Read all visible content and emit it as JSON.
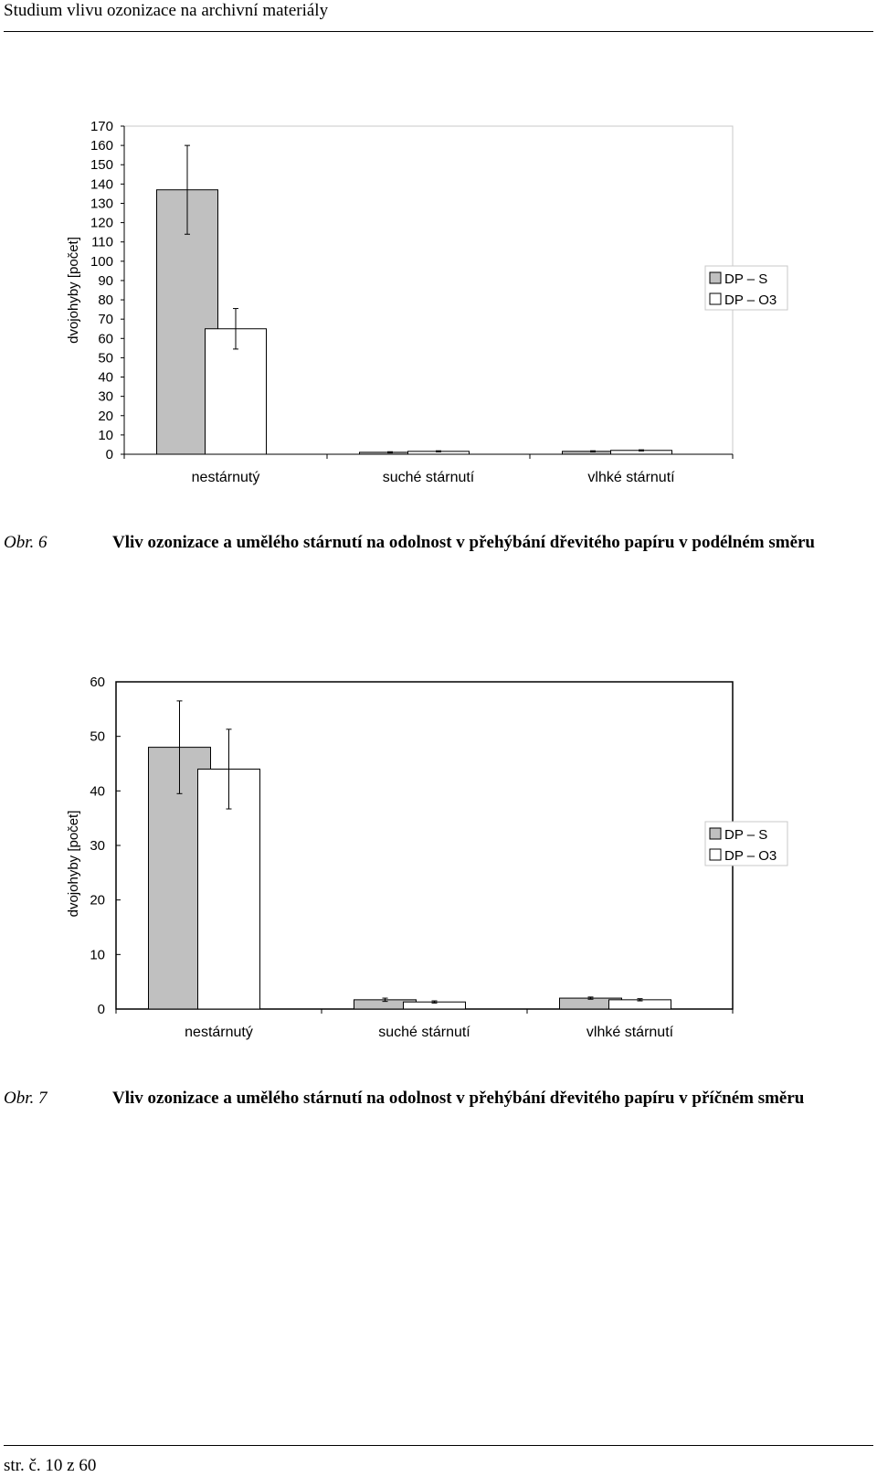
{
  "header": {
    "running_title": "Studium vlivu ozonizace na archivní materiály"
  },
  "footer": {
    "page": "str. č. 10 z 60"
  },
  "figures": [
    {
      "label": "Obr. 6",
      "caption": "Vliv ozonizace a umělého stárnutí na odolnost v přehýbání dřevitého papíru v podélném směru",
      "chart_data": {
        "type": "bar",
        "ylabel": "dvojohyby [počet]",
        "xlabel": "",
        "ylim": [
          0,
          170
        ],
        "yticks": [
          0,
          10,
          20,
          30,
          40,
          50,
          60,
          70,
          80,
          90,
          100,
          110,
          120,
          130,
          140,
          150,
          160,
          170
        ],
        "categories": [
          "nestárnutý",
          "suché stárnutí",
          "vlhké stárnutí"
        ],
        "series": [
          {
            "name": "DP – S",
            "color": "#c0c0c0",
            "values": [
              137,
              1,
              1.5
            ],
            "error": [
              23,
              0.3,
              0.3
            ]
          },
          {
            "name": "DP – O3",
            "color": "#ffffff",
            "values": [
              65,
              1.5,
              2
            ],
            "error": [
              10.5,
              0.3,
              0.3
            ]
          }
        ],
        "grid": false,
        "legend": "right"
      }
    },
    {
      "label": "Obr. 7",
      "caption": "Vliv ozonizace a umělého stárnutí na odolnost v přehýbání dřevitého papíru v příčném směru",
      "chart_data": {
        "type": "bar",
        "ylabel": "dvojohyby [počet]",
        "xlabel": "",
        "ylim": [
          0,
          60
        ],
        "yticks": [
          0,
          10,
          20,
          30,
          40,
          50,
          60
        ],
        "categories": [
          "nestárnutý",
          "suché stárnutí",
          "vlhké stárnutí"
        ],
        "series": [
          {
            "name": "DP – S",
            "color": "#c0c0c0",
            "values": [
              48,
              1.7,
              2
            ],
            "error": [
              8.5,
              0.3,
              0.2
            ]
          },
          {
            "name": "DP – O3",
            "color": "#ffffff",
            "values": [
              44,
              1.3,
              1.7
            ],
            "error": [
              7.3,
              0.2,
              0.2
            ]
          }
        ],
        "grid": false,
        "legend": "right"
      }
    }
  ]
}
